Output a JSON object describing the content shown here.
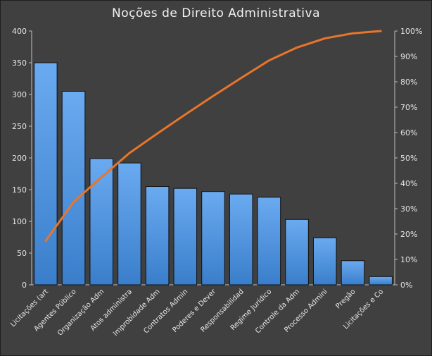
{
  "chart_data": {
    "type": "bar",
    "title": "Noções de Direito Administrativa",
    "categories": [
      "Licitações (art",
      "Agentes Público",
      "Organização Adm",
      "Atos administra",
      "Improbidade Adm",
      "Contratos Admin",
      "Poderes e Dever",
      "Responsabilidad",
      "Regime Jurídico",
      "Controle da Adm",
      "Processo Admini",
      "Pregão",
      "Licitações e Co"
    ],
    "series": [
      {
        "type": "bar",
        "values": [
          350,
          305,
          199,
          192,
          155,
          152,
          147,
          143,
          138,
          103,
          74,
          38,
          13
        ]
      },
      {
        "type": "line",
        "axis": "right",
        "values": [
          17.3,
          32.6,
          42.4,
          51.9,
          59.6,
          67.1,
          74.4,
          81.5,
          88.4,
          93.5,
          97.1,
          99.1,
          100
        ]
      }
    ],
    "ylim": [
      0,
      400
    ],
    "yticks": [
      "0",
      "50",
      "100",
      "150",
      "200",
      "250",
      "300",
      "350",
      "400"
    ],
    "y2lim": [
      0,
      100
    ],
    "y2ticks": [
      "0%",
      "10%",
      "20%",
      "30%",
      "40%",
      "50%",
      "60%",
      "70%",
      "80%",
      "90%",
      "100%"
    ],
    "grid": false,
    "colors": {
      "bar": "#4a90d9",
      "bar_edge": "#111111",
      "line": "#e8752a",
      "text": "#e6e6e6",
      "background": "#404040",
      "axis": "#bfbfbf"
    }
  }
}
